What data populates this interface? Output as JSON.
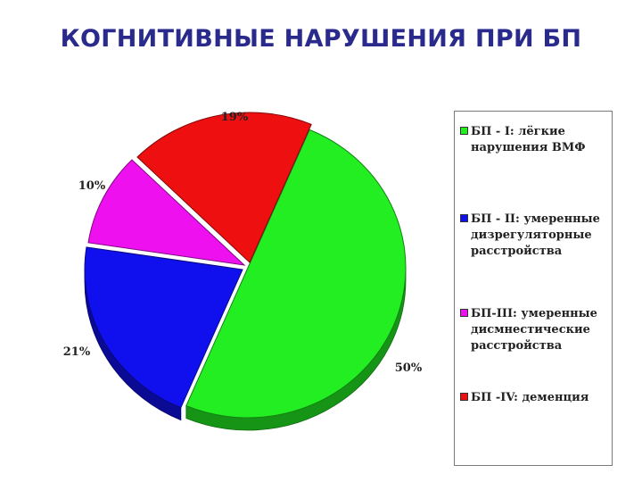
{
  "page": {
    "title": "КОГНИТИВНЫЕ НАРУШЕНИЯ ПРИ БП"
  },
  "chart_data": {
    "type": "pie",
    "categories": [
      "БП - I: лёгкие нарушения ВМФ",
      "БП - II: умеренные дизрегуляторные расстройства",
      "БП-III: умеренные дисмнестические расстройства",
      "БП -IV: деменция"
    ],
    "values": [
      50,
      21,
      10,
      19
    ],
    "labels": [
      "50%",
      "21%",
      "10%",
      "19%"
    ],
    "colors": [
      "#22ee22",
      "#1010ee",
      "#ee10ee",
      "#ee1010"
    ],
    "legend_position": "right"
  }
}
